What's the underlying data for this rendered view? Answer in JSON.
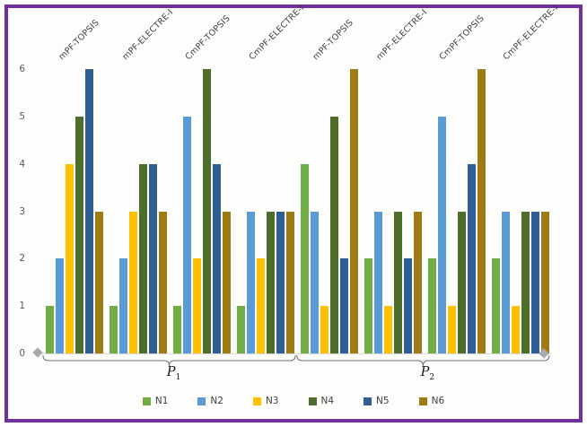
{
  "frame": {
    "border_color": "#7030A0",
    "background": "#FDFDFC"
  },
  "chart_data": {
    "type": "bar",
    "title": "",
    "xlabel": "",
    "ylabel": "",
    "categories": [
      "mPF-TOPSIS",
      "mPF-ELECTRE-I",
      "CmPF-TOPSIS",
      "CmPF-ELECTRE-I",
      "mPF-TOPSIS",
      "mPF-ELECTRE-I",
      "CmPF-TOPSIS",
      "CmPF-ELECTRE-I"
    ],
    "series": [
      {
        "name": "N1",
        "color": "#70AD47",
        "values": [
          1,
          1,
          1,
          1,
          4,
          2,
          2,
          2
        ]
      },
      {
        "name": "N2",
        "color": "#5B9BD5",
        "values": [
          2,
          2,
          5,
          3,
          3,
          3,
          5,
          3
        ]
      },
      {
        "name": "N3",
        "color": "#FFC000",
        "values": [
          4,
          3,
          2,
          2,
          1,
          1,
          1,
          1
        ]
      },
      {
        "name": "N4",
        "color": "#4E6C2A",
        "values": [
          5,
          4,
          6,
          3,
          5,
          3,
          3,
          3
        ]
      },
      {
        "name": "N5",
        "color": "#2E5E93",
        "values": [
          6,
          4,
          4,
          3,
          2,
          2,
          4,
          3
        ]
      },
      {
        "name": "N6",
        "color": "#9E7B14",
        "values": [
          3,
          3,
          3,
          3,
          6,
          3,
          6,
          3
        ]
      }
    ],
    "sections": [
      {
        "label_main": "P",
        "label_sub": "1",
        "first_group": 0,
        "last_group": 3
      },
      {
        "label_main": "P",
        "label_sub": "2",
        "first_group": 4,
        "last_group": 7
      }
    ],
    "y_ticks": [
      0,
      1,
      2,
      3,
      4,
      5,
      6
    ],
    "ylim": [
      0,
      6
    ],
    "grid": false,
    "legend_position": "bottom",
    "axis_marker_color": "#A9A9A9",
    "tick_color": "#595959"
  }
}
